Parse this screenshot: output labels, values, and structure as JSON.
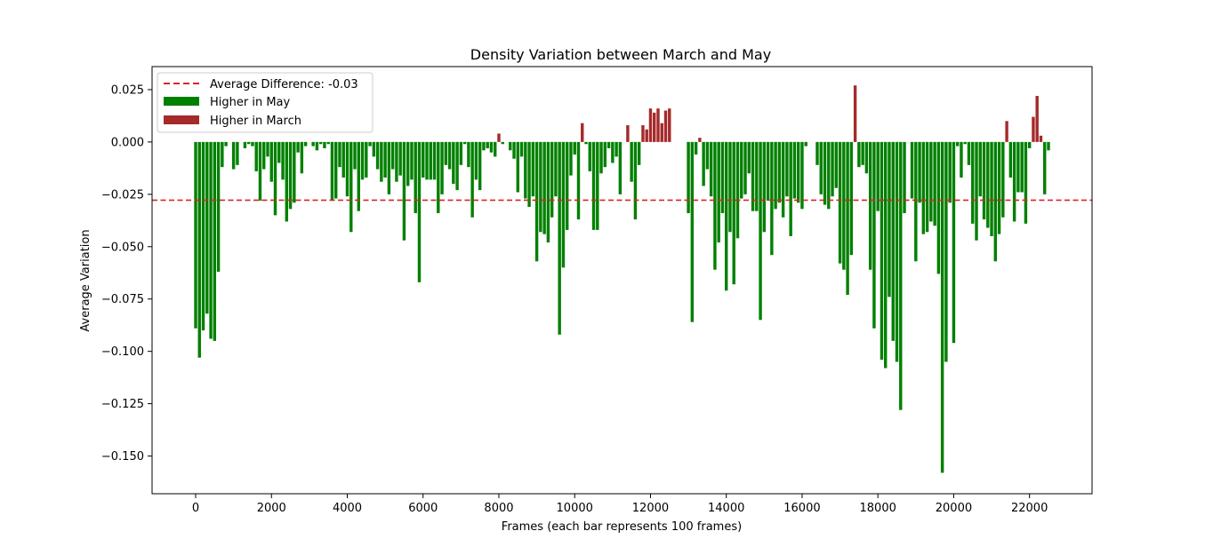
{
  "chart_data": {
    "type": "bar",
    "title": "Density Variation between March and May",
    "xlabel": "Frames (each bar represents 100 frames)",
    "ylabel": "Average Variation",
    "xlim": [
      -1150,
      23650
    ],
    "ylim": [
      -0.168,
      0.036
    ],
    "x_ticks": [
      0,
      2000,
      4000,
      6000,
      8000,
      10000,
      12000,
      14000,
      16000,
      18000,
      20000,
      22000
    ],
    "x_tick_labels": [
      "0",
      "2000",
      "4000",
      "6000",
      "8000",
      "10000",
      "12000",
      "14000",
      "16000",
      "18000",
      "20000",
      "22000"
    ],
    "y_ticks": [
      0.025,
      0.0,
      -0.025,
      -0.05,
      -0.075,
      -0.1,
      -0.125,
      -0.15
    ],
    "y_tick_labels": [
      "0.025",
      "0.000",
      "−0.025",
      "−0.050",
      "−0.075",
      "−0.100",
      "−0.125",
      "−0.150"
    ],
    "bar_width": 80,
    "average_difference": -0.0278,
    "legend": {
      "placement": "upper-left",
      "entries": [
        {
          "label": "Average Difference: -0.03",
          "kind": "dashed-line",
          "color": "#d62728"
        },
        {
          "label": "Higher in May",
          "kind": "patch",
          "color": "#008000"
        },
        {
          "label": "Higher in March",
          "kind": "patch",
          "color": "#a52a2a"
        }
      ]
    },
    "colors": {
      "higher_in_may": "#008000",
      "higher_in_march": "#a52a2a",
      "average_line": "#d62728"
    },
    "x": [
      0,
      100,
      200,
      300,
      400,
      500,
      600,
      700,
      800,
      900,
      1000,
      1100,
      1200,
      1300,
      1400,
      1500,
      1600,
      1700,
      1800,
      1900,
      2000,
      2100,
      2200,
      2300,
      2400,
      2500,
      2600,
      2700,
      2800,
      2900,
      3000,
      3100,
      3200,
      3300,
      3400,
      3500,
      3600,
      3700,
      3800,
      3900,
      4000,
      4100,
      4200,
      4300,
      4400,
      4500,
      4600,
      4700,
      4800,
      4900,
      5000,
      5100,
      5200,
      5300,
      5400,
      5500,
      5600,
      5700,
      5800,
      5900,
      6000,
      6100,
      6200,
      6300,
      6400,
      6500,
      6600,
      6700,
      6800,
      6900,
      7000,
      7100,
      7200,
      7300,
      7400,
      7500,
      7600,
      7700,
      7800,
      7900,
      8000,
      8100,
      8200,
      8300,
      8400,
      8500,
      8600,
      8700,
      8800,
      8900,
      9000,
      9100,
      9200,
      9300,
      9400,
      9500,
      9600,
      9700,
      9800,
      9900,
      10000,
      10100,
      10200,
      10300,
      10400,
      10500,
      10600,
      10700,
      10800,
      10900,
      11000,
      11100,
      11200,
      11300,
      11400,
      11500,
      11600,
      11700,
      11800,
      11900,
      12000,
      12100,
      12200,
      12300,
      12400,
      12500,
      12600,
      12700,
      12800,
      12900,
      13000,
      13100,
      13200,
      13300,
      13400,
      13500,
      13600,
      13700,
      13800,
      13900,
      14000,
      14100,
      14200,
      14300,
      14400,
      14500,
      14600,
      14700,
      14800,
      14900,
      15000,
      15100,
      15200,
      15300,
      15400,
      15500,
      15600,
      15700,
      15800,
      15900,
      16000,
      16100,
      16200,
      16300,
      16400,
      16500,
      16600,
      16700,
      16800,
      16900,
      17000,
      17100,
      17200,
      17300,
      17400,
      17500,
      17600,
      17700,
      17800,
      17900,
      18000,
      18100,
      18200,
      18300,
      18400,
      18500,
      18600,
      18700,
      18800,
      18900,
      19000,
      19100,
      19200,
      19300,
      19400,
      19500,
      19600,
      19700,
      19800,
      19900,
      20000,
      20100,
      20200,
      20300,
      20400,
      20500,
      20600,
      20700,
      20800,
      20900,
      21000,
      21100,
      21200,
      21300,
      21400,
      21500,
      21600,
      21700,
      21800,
      21900,
      22000,
      22100,
      22200,
      22300,
      22400,
      22500
    ],
    "values": [
      -0.089,
      -0.103,
      -0.09,
      -0.082,
      -0.094,
      -0.095,
      -0.062,
      -0.012,
      -0.002,
      0.0,
      -0.013,
      -0.011,
      0.0,
      -0.003,
      -0.001,
      -0.002,
      -0.014,
      -0.028,
      -0.013,
      -0.007,
      -0.019,
      -0.035,
      -0.01,
      -0.018,
      -0.038,
      -0.032,
      -0.029,
      -0.005,
      -0.015,
      -0.002,
      0.0,
      -0.002,
      -0.004,
      -0.001,
      -0.003,
      -0.001,
      -0.028,
      -0.027,
      -0.012,
      -0.017,
      -0.026,
      -0.043,
      -0.013,
      -0.033,
      -0.018,
      -0.017,
      -0.002,
      -0.007,
      -0.013,
      -0.019,
      -0.017,
      -0.025,
      -0.013,
      -0.019,
      -0.016,
      -0.047,
      -0.021,
      -0.018,
      -0.034,
      -0.067,
      -0.017,
      -0.018,
      -0.018,
      -0.018,
      -0.034,
      -0.025,
      -0.011,
      -0.013,
      -0.02,
      -0.023,
      -0.011,
      -0.001,
      -0.012,
      -0.036,
      -0.018,
      -0.023,
      -0.004,
      -0.003,
      -0.005,
      -0.007,
      0.004,
      -0.001,
      0.0,
      -0.004,
      -0.008,
      -0.024,
      -0.007,
      -0.027,
      -0.031,
      -0.026,
      -0.057,
      -0.043,
      -0.044,
      -0.048,
      -0.036,
      -0.026,
      -0.092,
      -0.06,
      -0.042,
      -0.016,
      -0.006,
      -0.037,
      0.009,
      -0.001,
      -0.014,
      -0.042,
      -0.042,
      -0.015,
      -0.012,
      -0.003,
      -0.01,
      -0.007,
      -0.025,
      0.0,
      0.008,
      -0.019,
      -0.037,
      -0.011,
      0.008,
      0.006,
      0.016,
      0.014,
      0.016,
      0.009,
      0.015,
      0.016,
      0.0,
      0.0,
      0.0,
      0.0,
      -0.034,
      -0.086,
      -0.006,
      0.002,
      -0.021,
      -0.013,
      -0.026,
      -0.061,
      -0.048,
      -0.034,
      -0.071,
      -0.043,
      -0.068,
      -0.046,
      -0.027,
      -0.025,
      -0.015,
      -0.033,
      -0.033,
      -0.085,
      -0.043,
      -0.028,
      -0.054,
      -0.032,
      -0.029,
      -0.036,
      -0.026,
      -0.045,
      -0.027,
      -0.029,
      -0.032,
      -0.002,
      0.0,
      0.0,
      -0.011,
      -0.025,
      -0.03,
      -0.032,
      -0.026,
      -0.022,
      -0.058,
      -0.061,
      -0.073,
      -0.054,
      0.027,
      -0.012,
      -0.011,
      -0.015,
      -0.061,
      -0.089,
      -0.033,
      -0.104,
      -0.108,
      -0.074,
      -0.095,
      -0.105,
      -0.128,
      -0.034,
      0.0,
      -0.027,
      -0.057,
      -0.029,
      -0.044,
      -0.043,
      -0.038,
      -0.04,
      -0.063,
      -0.158,
      -0.105,
      -0.029,
      -0.096,
      -0.002,
      -0.017,
      -0.001,
      -0.011,
      -0.039,
      -0.047,
      -0.026,
      -0.037,
      -0.041,
      -0.045,
      -0.057,
      -0.044,
      -0.036,
      0.01,
      -0.017,
      -0.038,
      -0.024,
      -0.024,
      -0.039,
      -0.003,
      0.012,
      0.022,
      0.003,
      -0.025,
      -0.004
    ]
  }
}
